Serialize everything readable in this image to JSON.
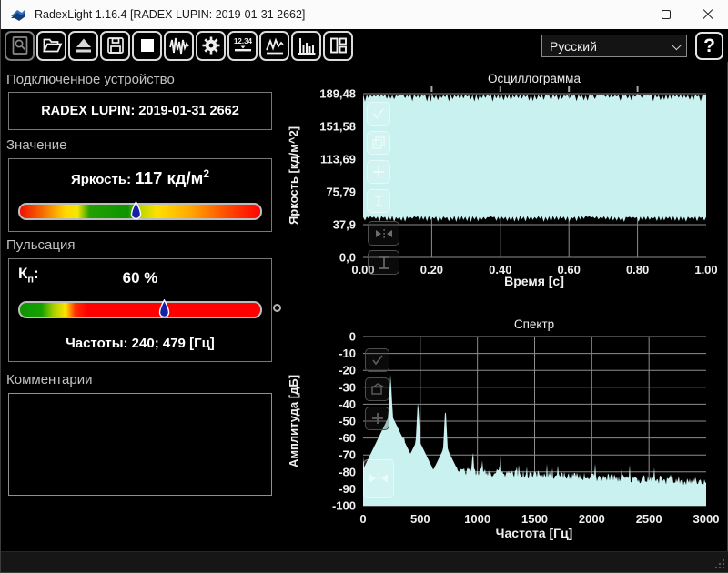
{
  "window": {
    "title": "RadexLight 1.16.4 [RADEX LUPIN: 2019-01-31 2662]"
  },
  "toolbar": {
    "numeric_icon_text": "12.34",
    "language_value": "Русский",
    "help_label": "?",
    "button_icons": [
      "zoom-document-icon",
      "open-folder-icon",
      "eject-icon",
      "save-icon",
      "stop-icon",
      "waveform-icon",
      "gear-icon",
      "numeric-display-icon",
      "line-chart-icon",
      "bar-chart-icon",
      "panel-layout-icon"
    ]
  },
  "device_section": {
    "title": "Подключенное устройство",
    "device_name": "RADEX LUPIN: 2019-01-31 2662"
  },
  "value_section": {
    "title": "Значение",
    "label": "Яркость:",
    "value": "117",
    "unit": "кд/м",
    "unit_exponent": "2",
    "marker_percent": 48
  },
  "pulsation_section": {
    "title": "Пульсация",
    "kp_base": "К",
    "kp_sub": "п",
    "kp_suffix": ":",
    "value": "60 %",
    "marker_percent": 60,
    "frequencies": "Частоты: 240; 479 [Гц]"
  },
  "comments_section": {
    "title": "Комментарии",
    "text": ""
  },
  "colors": {
    "chart_fill": "#c9f1ef",
    "grid_line": "#8d8d8d",
    "marker_fill": "#1520a6",
    "scale_green": "#0d9400",
    "scale_yellow": "#ffe000",
    "scale_red": "#ff0400",
    "titlebar_bg": "#fbfbfb",
    "app_bg": "#000000"
  },
  "chart_data": [
    {
      "type": "area",
      "title": "Осциллограмма",
      "xlabel": "Время [с]",
      "ylabel": "Яркость [кд/м^2]",
      "x_ticks": [
        "0.00",
        "0.20",
        "0.40",
        "0.60",
        "0.80",
        "1.00"
      ],
      "y_ticks": [
        "189,48",
        "151,58",
        "113,69",
        "75,79",
        "37,9",
        "0,0"
      ],
      "y_tick_values": [
        189.48,
        151.58,
        113.69,
        75.79,
        37.9,
        0
      ],
      "xlim": [
        0,
        1
      ],
      "ylim": [
        0,
        189.48
      ],
      "signal_band": {
        "min": 45,
        "max": 189
      },
      "grid": true,
      "legend": "none",
      "fill_color": "#c9f1ef"
    },
    {
      "type": "area",
      "title": "Спектр",
      "xlabel": "Частота [Гц]",
      "ylabel": "Амплитуда [дБ]",
      "x_ticks": [
        0,
        500,
        1000,
        1500,
        2000,
        2500,
        3000
      ],
      "y_ticks": [
        0,
        -10,
        -20,
        -30,
        -40,
        -50,
        -60,
        -70,
        -80,
        -90,
        -100
      ],
      "xlim": [
        0,
        3000
      ],
      "ylim": [
        -100,
        0
      ],
      "noise_floor": {
        "start_db": -77,
        "end_db": -86
      },
      "peaks": [
        {
          "freq": 240,
          "db": -21
        },
        {
          "freq": 360,
          "db": -57
        },
        {
          "freq": 480,
          "db": -36
        },
        {
          "freq": 720,
          "db": -40
        },
        {
          "freq": 960,
          "db": -65
        },
        {
          "freq": 1200,
          "db": -68
        },
        {
          "freq": 1430,
          "db": -74
        }
      ],
      "grid": true,
      "legend": "none",
      "fill_color": "#c9f1ef"
    }
  ]
}
